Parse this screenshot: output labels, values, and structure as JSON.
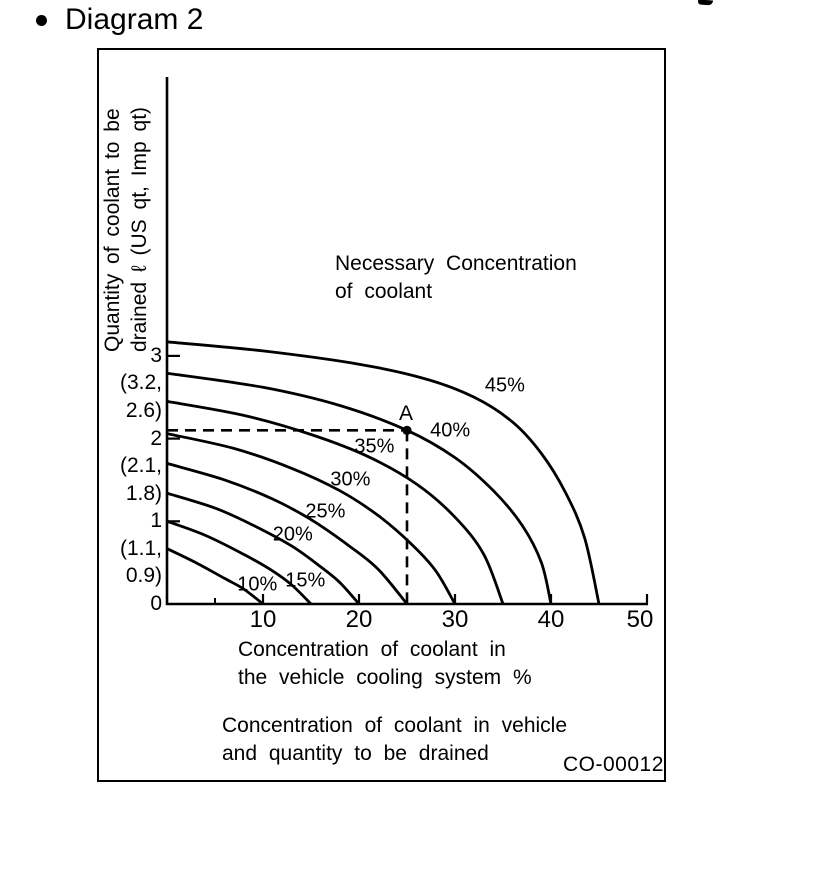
{
  "page": {
    "heading": "Diagram 2",
    "background": "#ffffff",
    "ink": "#000000"
  },
  "figure": {
    "code": "CO-00012",
    "caption_lines": [
      "Concentration of coolant in vehicle",
      "and quantity to be drained"
    ]
  },
  "chart_data": {
    "type": "line",
    "title": "Concentration of coolant in vehicle and quantity to be drained",
    "annotation_lines": [
      "Necessary Concentration",
      "of coolant"
    ],
    "xlabel_lines": [
      "Concentration of coolant in",
      "the vehicle cooling system %"
    ],
    "ylabel_lines": [
      "Quantity of coolant to be",
      "drained ℓ (US qt, Imp qt)"
    ],
    "xlim": [
      0,
      50
    ],
    "ylim": [
      0,
      3.5
    ],
    "grid": false,
    "legend": "curve labels inline",
    "x_ticks": [
      {
        "v": 10,
        "label": "10"
      },
      {
        "v": 20,
        "label": "20"
      },
      {
        "v": 30,
        "label": "30"
      },
      {
        "v": 40,
        "label": "40"
      },
      {
        "v": 50,
        "label": "50"
      }
    ],
    "x_minor_ticks": [
      5
    ],
    "y_ticks": [
      {
        "v": 3,
        "lines": [
          "3",
          "(3.2,",
          "2.6)"
        ]
      },
      {
        "v": 2,
        "lines": [
          "2",
          "(2.1,",
          "1.8)"
        ]
      },
      {
        "v": 1,
        "lines": [
          "1",
          "(1.1,",
          "0.9)"
        ]
      },
      {
        "v": 0,
        "lines": [
          "0"
        ]
      }
    ],
    "series": [
      {
        "name": "10%",
        "points": [
          [
            0,
            0.67
          ],
          [
            3,
            0.5
          ],
          [
            6,
            0.31
          ],
          [
            8,
            0.18
          ],
          [
            10,
            0
          ]
        ],
        "label_at": [
          9.4,
          0.23
        ]
      },
      {
        "name": "15%",
        "points": [
          [
            0,
            1.0
          ],
          [
            4,
            0.83
          ],
          [
            8,
            0.6
          ],
          [
            11,
            0.4
          ],
          [
            13,
            0.23
          ],
          [
            15,
            0
          ]
        ],
        "label_at": [
          14.4,
          0.28
        ]
      },
      {
        "name": "20%",
        "points": [
          [
            0,
            1.34
          ],
          [
            5,
            1.16
          ],
          [
            9,
            0.95
          ],
          [
            13,
            0.7
          ],
          [
            16,
            0.45
          ],
          [
            18,
            0.26
          ],
          [
            20,
            0
          ]
        ],
        "label_at": [
          13.1,
          0.83
        ]
      },
      {
        "name": "25%",
        "points": [
          [
            0,
            1.7
          ],
          [
            6,
            1.5
          ],
          [
            11,
            1.27
          ],
          [
            15,
            1.02
          ],
          [
            19,
            0.7
          ],
          [
            22,
            0.42
          ],
          [
            25,
            0
          ]
        ],
        "label_at": [
          16.5,
          1.11
        ]
      },
      {
        "name": "30%",
        "points": [
          [
            0,
            2.06
          ],
          [
            7,
            1.88
          ],
          [
            13,
            1.64
          ],
          [
            18,
            1.37
          ],
          [
            22,
            1.07
          ],
          [
            25.5,
            0.72
          ],
          [
            28,
            0.4
          ],
          [
            30,
            0
          ]
        ],
        "label_at": [
          19.1,
          1.5
        ]
      },
      {
        "name": "35%",
        "points": [
          [
            0,
            2.45
          ],
          [
            8,
            2.28
          ],
          [
            15,
            2.05
          ],
          [
            21,
            1.78
          ],
          [
            26,
            1.45
          ],
          [
            30,
            1.05
          ],
          [
            33,
            0.6
          ],
          [
            35,
            0
          ]
        ],
        "label_at": [
          21.6,
          1.9
        ]
      },
      {
        "name": "40%",
        "points": [
          [
            0,
            2.79
          ],
          [
            10,
            2.62
          ],
          [
            18,
            2.4
          ],
          [
            25,
            2.1
          ],
          [
            30,
            1.77
          ],
          [
            34,
            1.37
          ],
          [
            37,
            0.95
          ],
          [
            39,
            0.5
          ],
          [
            40,
            0
          ]
        ],
        "label_at": [
          29.5,
          2.09
        ]
      },
      {
        "name": "45%",
        "points": [
          [
            0,
            3.17
          ],
          [
            10,
            3.06
          ],
          [
            20,
            2.9
          ],
          [
            27,
            2.72
          ],
          [
            32,
            2.5
          ],
          [
            36,
            2.2
          ],
          [
            39,
            1.82
          ],
          [
            41.5,
            1.35
          ],
          [
            43.5,
            0.8
          ],
          [
            45,
            0
          ]
        ],
        "label_at": [
          35.2,
          2.64
        ]
      }
    ],
    "point_a": {
      "label": "A",
      "x": 25,
      "y": 2.1
    },
    "guides": {
      "horizontal": {
        "y": 2.1,
        "from_x": 0,
        "to_x": 25
      },
      "vertical": {
        "x": 25,
        "from_y": 0,
        "to_y": 2.1
      }
    }
  }
}
